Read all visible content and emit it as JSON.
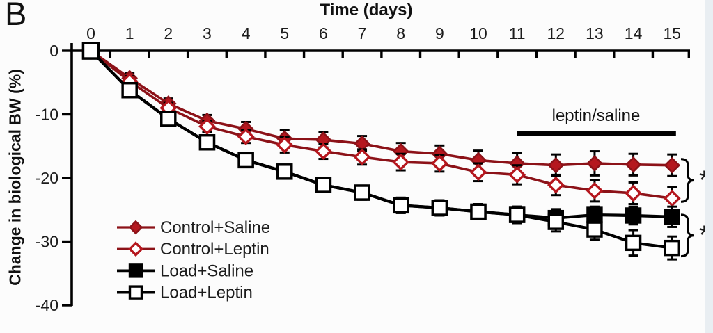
{
  "panel_label": "B",
  "colors": {
    "series_red_fill": "#b5171e",
    "series_red_line": "#8c1218",
    "series_black": "#000000",
    "axis": "#000000",
    "background": "#fcfcfc",
    "edge_strip": "#e9eef2"
  },
  "chart_data": {
    "type": "line",
    "title": "",
    "xlabel": "Time (days)",
    "ylabel": "Change in biological BW (%)",
    "x": [
      0,
      1,
      2,
      3,
      4,
      5,
      6,
      7,
      8,
      9,
      10,
      11,
      12,
      13,
      14,
      15
    ],
    "xtick_labels": [
      "0",
      "1",
      "2",
      "3",
      "4",
      "5",
      "6",
      "7",
      "8",
      "9",
      "10",
      "11",
      "12",
      "13",
      "14",
      "15"
    ],
    "yticks": [
      0,
      -10,
      -20,
      -30,
      -40
    ],
    "ytick_labels": [
      "0",
      "-10",
      "-20",
      "-30",
      "-40"
    ],
    "xlim": [
      0,
      15
    ],
    "ylim": [
      -40,
      0
    ],
    "grid": "off",
    "legend_position": "lower-left",
    "series": [
      {
        "name": "Control+Saline",
        "marker": "diamond",
        "fill": "filled",
        "color": "#b5171e",
        "line_color": "#8c1218",
        "values": [
          0,
          -4.3,
          -8.3,
          -11.0,
          -12.3,
          -13.8,
          -14.0,
          -14.6,
          -15.8,
          -16.2,
          -17.2,
          -17.7,
          -18.0,
          -17.7,
          -17.9,
          -18.0
        ],
        "err": [
          0.4,
          0.8,
          0.8,
          0.9,
          1.1,
          1.3,
          1.2,
          1.2,
          1.3,
          1.3,
          1.5,
          1.6,
          1.7,
          1.9,
          1.7,
          1.7
        ]
      },
      {
        "name": "Control+Leptin",
        "marker": "diamond",
        "fill": "open",
        "color": "#b5171e",
        "line_color": "#8c1218",
        "values": [
          0,
          -4.8,
          -9.0,
          -11.9,
          -13.5,
          -14.8,
          -15.8,
          -16.7,
          -17.5,
          -17.7,
          -19.1,
          -19.5,
          -21.1,
          -22.0,
          -22.4,
          -23.2
        ],
        "err": [
          0.4,
          0.8,
          0.8,
          0.9,
          1.0,
          1.2,
          1.2,
          1.2,
          1.3,
          1.3,
          1.4,
          1.5,
          1.6,
          1.7,
          1.7,
          1.8
        ]
      },
      {
        "name": "Load+Saline",
        "marker": "square",
        "fill": "filled",
        "color": "#000000",
        "line_color": "#000000",
        "values": [
          0,
          -6.2,
          -10.7,
          -14.4,
          -17.2,
          -19.0,
          -21.1,
          -22.3,
          -24.3,
          -24.7,
          -25.3,
          -25.8,
          -26.3,
          -25.8,
          -25.9,
          -26.1
        ],
        "err": [
          0.4,
          0.7,
          0.8,
          0.9,
          1.0,
          1.0,
          1.1,
          1.1,
          1.2,
          1.2,
          1.2,
          1.3,
          1.4,
          1.3,
          1.4,
          1.6
        ]
      },
      {
        "name": "Load+Leptin",
        "marker": "square",
        "fill": "open",
        "color": "#000000",
        "line_color": "#000000",
        "values": [
          0,
          -6.2,
          -10.7,
          -14.4,
          -17.2,
          -19.0,
          -21.1,
          -22.3,
          -24.3,
          -24.7,
          -25.3,
          -25.8,
          -26.9,
          -28.1,
          -30.2,
          -31.0
        ],
        "err": [
          0.4,
          0.7,
          0.8,
          0.9,
          1.0,
          1.0,
          1.1,
          1.1,
          1.2,
          1.2,
          1.2,
          1.3,
          1.5,
          1.6,
          2.0,
          1.8
        ]
      }
    ],
    "annotations": {
      "bar_label": "leptin/saline",
      "bar_span_days": [
        11,
        15.1
      ],
      "significance": [
        {
          "symbol": "*",
          "pair": [
            "Control+Saline",
            "Control+Leptin"
          ]
        },
        {
          "symbol": "*",
          "pair": [
            "Load+Saline",
            "Load+Leptin"
          ]
        }
      ]
    }
  }
}
